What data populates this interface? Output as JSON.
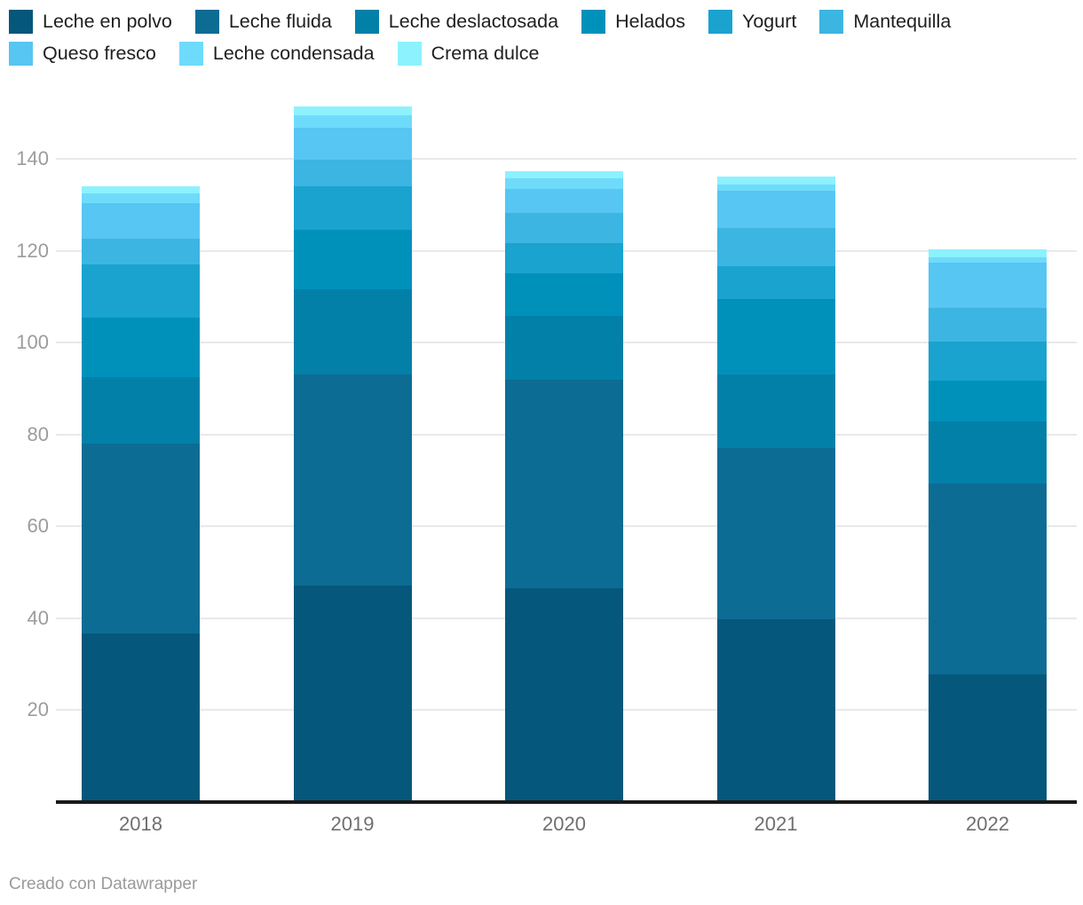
{
  "chart_data": {
    "type": "bar",
    "stacked": true,
    "title": "",
    "xlabel": "",
    "ylabel": "",
    "categories": [
      "2018",
      "2019",
      "2020",
      "2021",
      "2022"
    ],
    "series": [
      {
        "name": "Leche en polvo",
        "color": "#05577B",
        "values": [
          36.7,
          47.1,
          46.5,
          39.7,
          27.8
        ]
      },
      {
        "name": "Leche fluida",
        "color": "#0C6C94",
        "values": [
          41.3,
          45.9,
          45.5,
          37.3,
          41.5
        ]
      },
      {
        "name": "Leche deslactosada",
        "color": "#0380A8",
        "values": [
          14.5,
          18.6,
          13.9,
          16.1,
          13.5
        ]
      },
      {
        "name": "Helados",
        "color": "#0091BB",
        "values": [
          13.0,
          12.9,
          9.2,
          16.4,
          9.0
        ]
      },
      {
        "name": "Yogurt",
        "color": "#1AA3CE",
        "values": [
          11.6,
          9.5,
          6.5,
          7.1,
          8.4
        ]
      },
      {
        "name": "Mantequilla",
        "color": "#3CB5E2",
        "values": [
          5.5,
          5.8,
          6.7,
          8.4,
          7.3
        ]
      },
      {
        "name": "Queso fresco",
        "color": "#57C6F2",
        "values": [
          7.7,
          7.0,
          5.1,
          8.0,
          9.9
        ]
      },
      {
        "name": "Leche condensada",
        "color": "#6FDBFB",
        "values": [
          2.1,
          2.6,
          2.3,
          1.4,
          1.1
        ]
      },
      {
        "name": "Crema dulce",
        "color": "#8CF2FE",
        "values": [
          1.6,
          1.9,
          1.6,
          1.8,
          1.8
        ]
      }
    ],
    "totals": [
      134.0,
      151.3,
      137.3,
      136.2,
      120.3
    ],
    "stack_order": "first series at bottom of bar",
    "yticks": [
      20,
      40,
      60,
      80,
      100,
      120,
      140
    ],
    "ylim": [
      0,
      152
    ],
    "grid": true,
    "legend_position": "top-left",
    "colors_note": "sequential blues, dark at bottom of stack to light cyan at top"
  },
  "footer": {
    "credit": "Creado con Datawrapper"
  }
}
